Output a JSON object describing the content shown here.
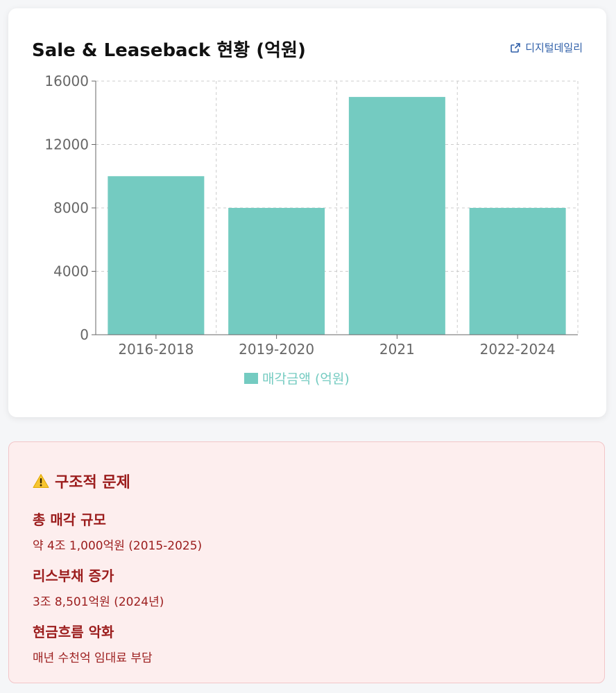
{
  "card": {
    "title": "Sale & Leaseback 현황 (억원)",
    "source_label": "디지털데일리"
  },
  "colors": {
    "bar": "#74cbc1",
    "legend_text": "#74cbc1",
    "axis_text": "#666666",
    "grid": "#cccccc",
    "issue_text": "#9b1c1c"
  },
  "chart_data": {
    "type": "bar",
    "title": "Sale & Leaseback 현황 (억원)",
    "categories": [
      "2016-2018",
      "2019-2020",
      "2021",
      "2022-2024"
    ],
    "series": [
      {
        "name": "매각금액 (억원)",
        "values": [
          10000,
          8000,
          15000,
          8000
        ]
      }
    ],
    "yticks": [
      "0",
      "4000",
      "8000",
      "12000",
      "16000"
    ],
    "ylim": [
      0,
      16000
    ],
    "grid": true,
    "legend_position": "bottom"
  },
  "issues": {
    "title": "구조적 문제",
    "items": [
      {
        "title": "총 매각 규모",
        "desc": "약 4조 1,000억원 (2015-2025)"
      },
      {
        "title": "리스부채 증가",
        "desc": "3조 8,501억원 (2024년)"
      },
      {
        "title": "현금흐름 악화",
        "desc": "매년 수천억 임대료 부담"
      }
    ]
  }
}
